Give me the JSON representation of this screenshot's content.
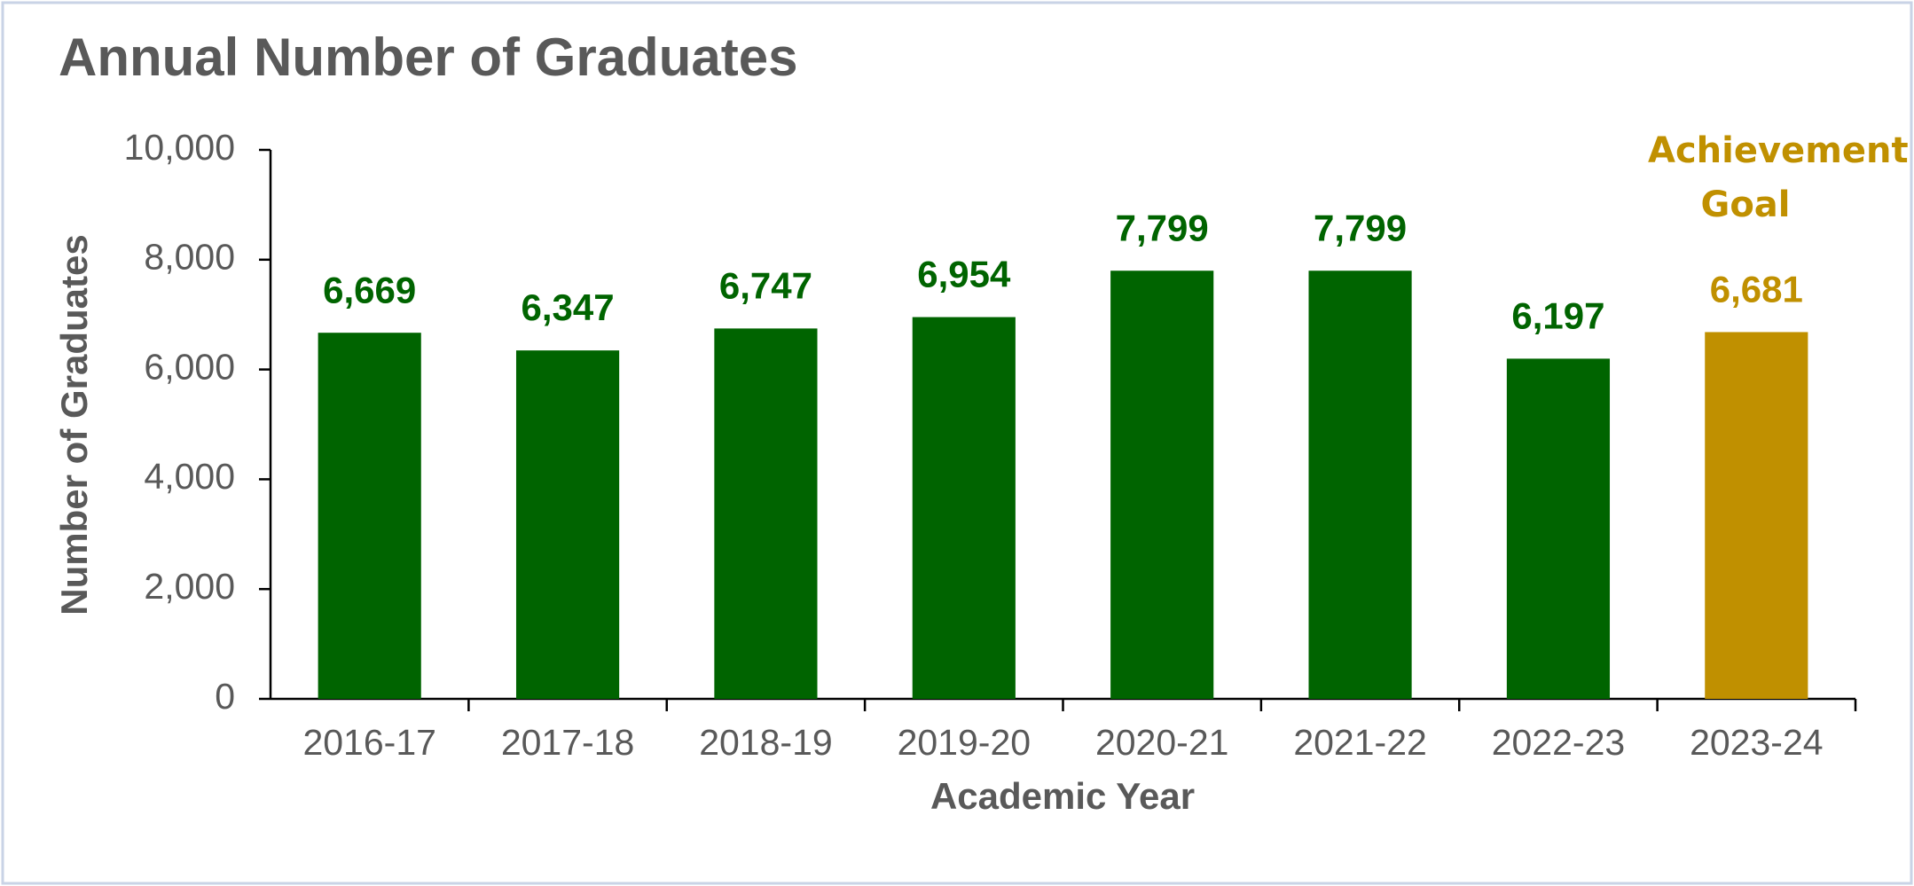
{
  "chart_data": {
    "type": "bar",
    "title": "Annual Number of Graduates",
    "x_label": "Academic Year",
    "y_label": "Number of Graduates",
    "categories": [
      "2016-17",
      "2017-18",
      "2018-19",
      "2019-20",
      "2020-21",
      "2021-22",
      "2022-23",
      "2023-24"
    ],
    "values": [
      6669,
      6347,
      6747,
      6954,
      7799,
      7799,
      6197,
      6681
    ],
    "value_labels": [
      "6,669",
      "6,347",
      "6,747",
      "6,954",
      "7,799",
      "7,799",
      "6,197",
      "6,681"
    ],
    "colors": [
      "#006400",
      "#006400",
      "#006400",
      "#006400",
      "#006400",
      "#006400",
      "#006400",
      "#C09000"
    ],
    "annotation": "Achievement Goal",
    "annotation_color": "#C09000",
    "ylim": [
      0,
      10000
    ],
    "yticks": [
      0,
      {
        "value": 2000,
        "label": "2,000"
      },
      {
        "value": 4000,
        "label": "4,000"
      },
      {
        "value": 6000,
        "label": "6,000"
      },
      {
        "value": 8000,
        "label": "8,000"
      },
      {
        "value": 10000,
        "label": "10,000"
      }
    ],
    "grid": false
  }
}
